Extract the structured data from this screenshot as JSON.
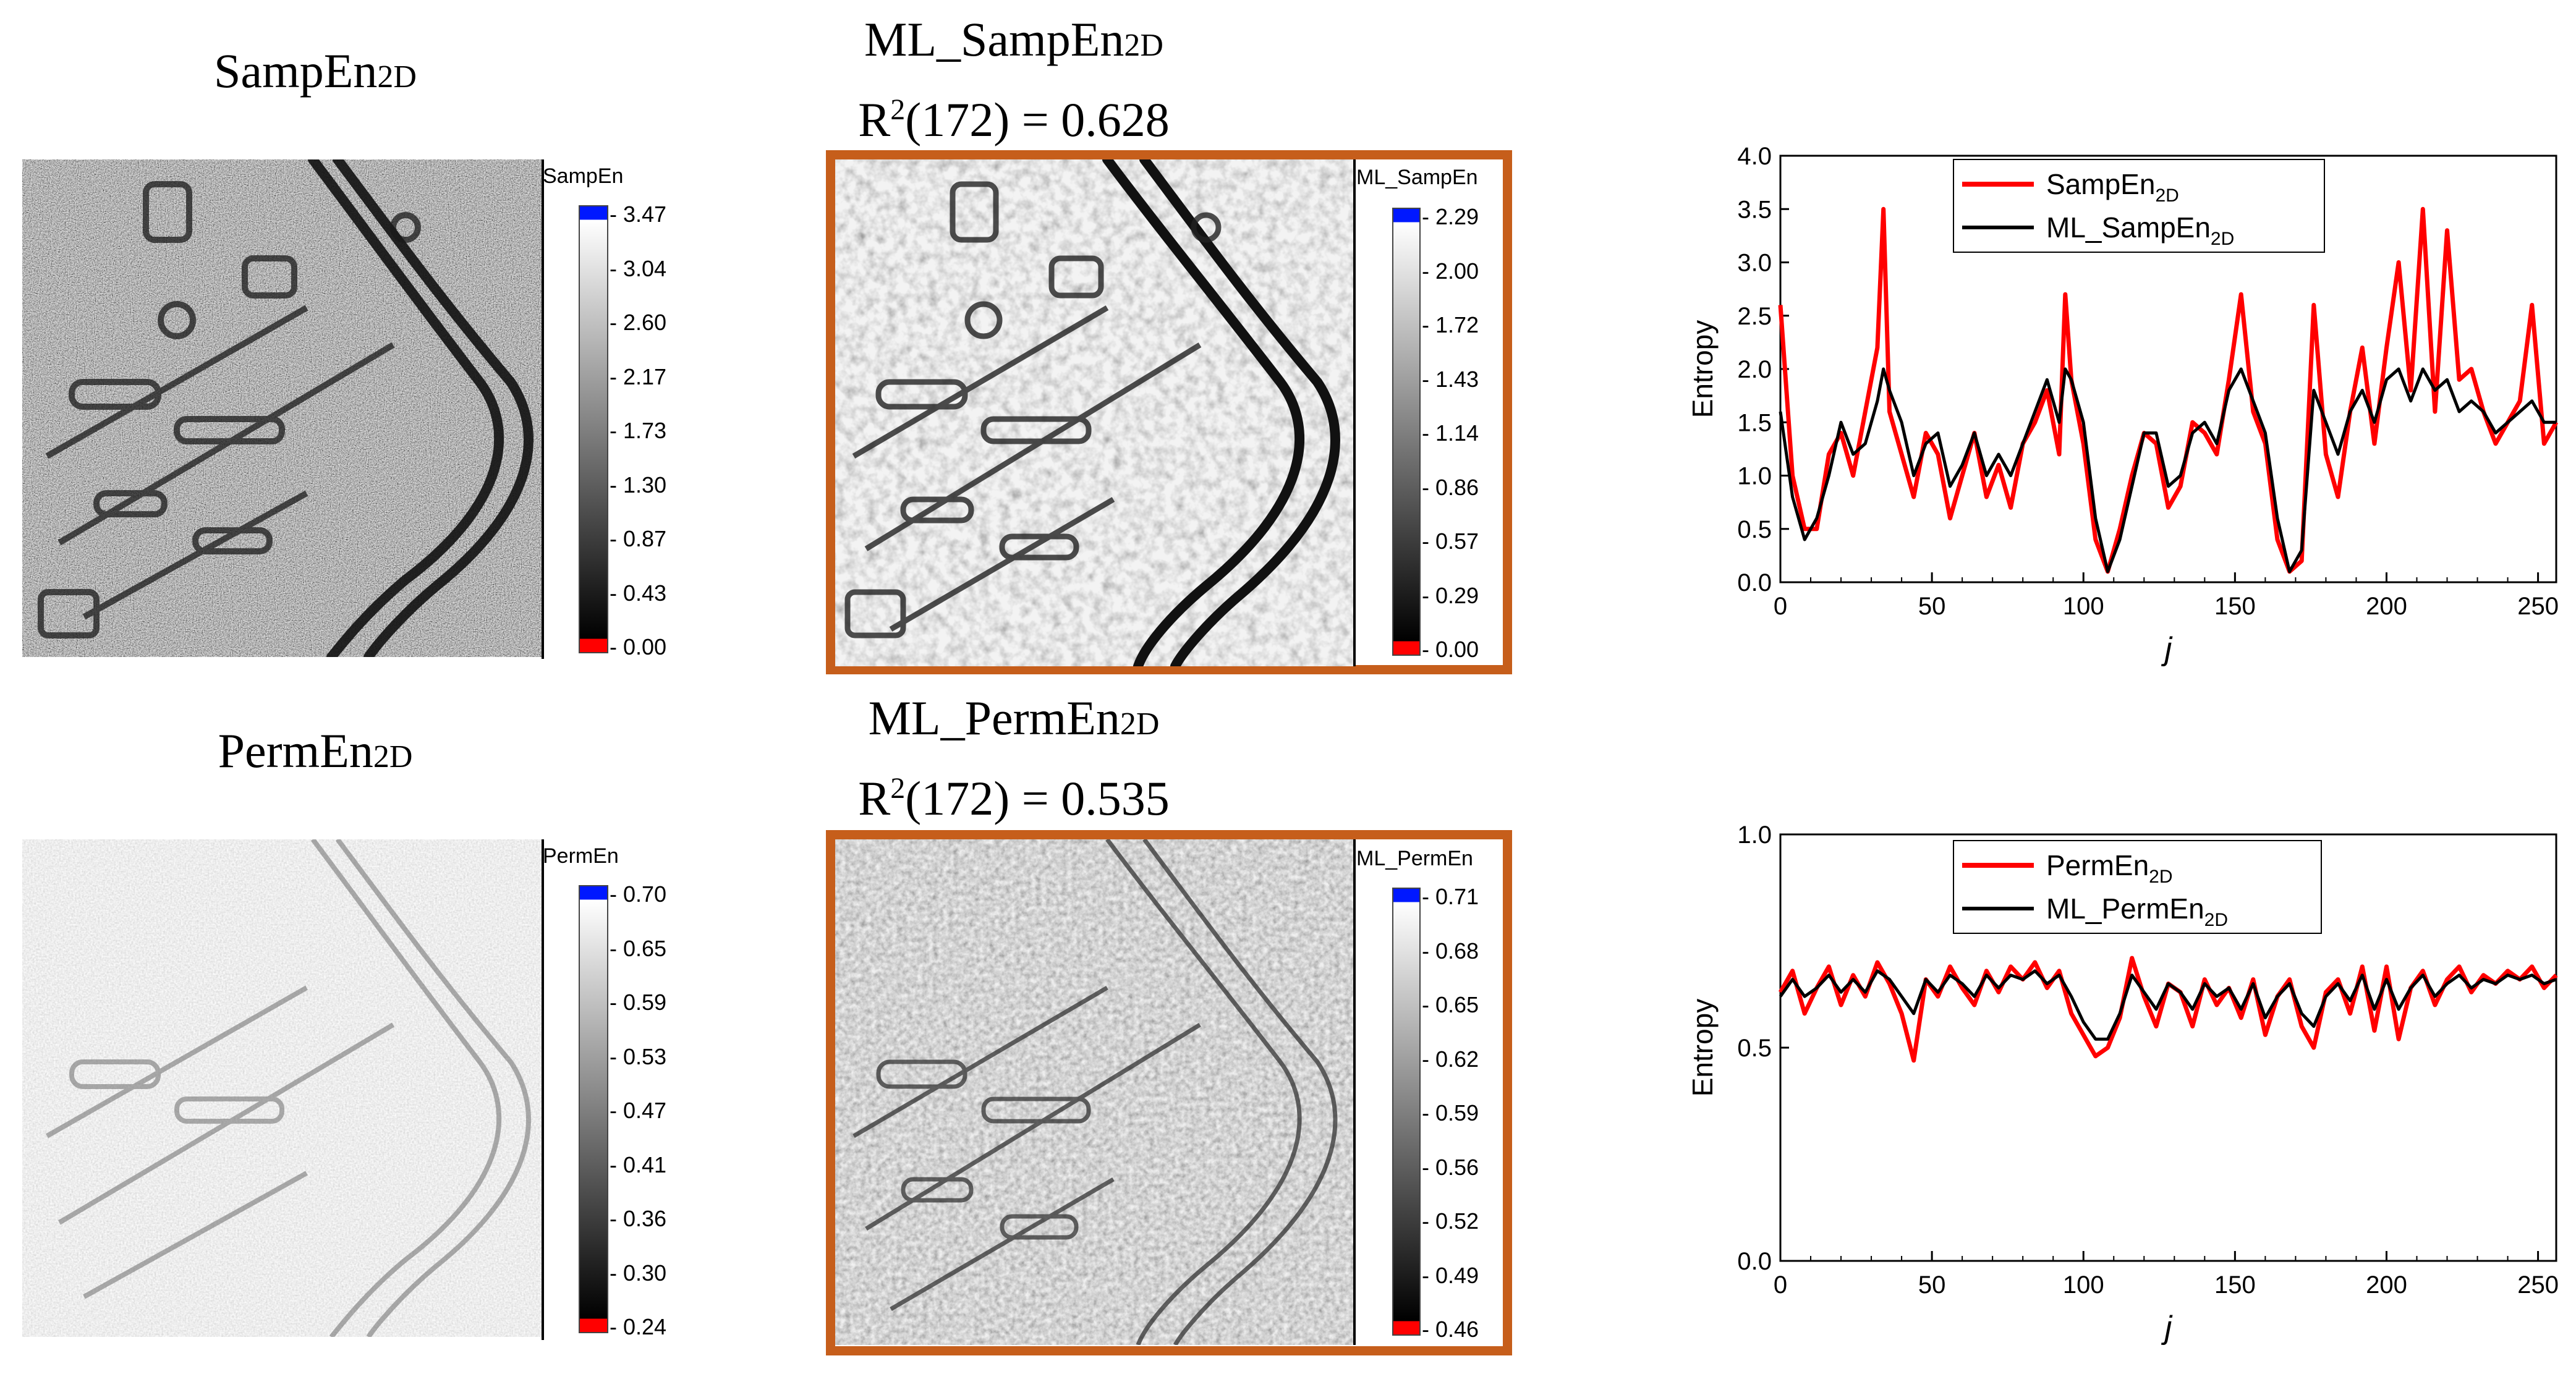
{
  "colors": {
    "frame": "#C65E1B",
    "series_red": "#FF0000",
    "series_black": "#000000"
  },
  "panels": {
    "samp_left": {
      "title_main": "SampEn",
      "title_sub": "2D",
      "colorbar_title": "SampEn",
      "ticks": [
        "3.47",
        "3.04",
        "2.60",
        "2.17",
        "1.73",
        "1.30",
        "0.87",
        "0.43",
        "0.00"
      ]
    },
    "samp_mid": {
      "title_main": "ML_SampEn",
      "title_sub": "2D",
      "r2_prefix": "R",
      "r2_sup": "2",
      "r2_rest": "(172) = 0.628",
      "colorbar_title": "ML_SampEn",
      "ticks": [
        "2.29",
        "2.00",
        "1.72",
        "1.43",
        "1.14",
        "0.86",
        "0.57",
        "0.29",
        "0.00"
      ]
    },
    "perm_left": {
      "title_main": "PermEn",
      "title_sub": "2D",
      "colorbar_title": "PermEn",
      "ticks": [
        "0.70",
        "0.65",
        "0.59",
        "0.53",
        "0.47",
        "0.41",
        "0.36",
        "0.30",
        "0.24"
      ]
    },
    "perm_mid": {
      "title_main": "ML_PermEn",
      "title_sub": "2D",
      "r2_prefix": "R",
      "r2_sup": "2",
      "r2_rest": "(172) = 0.535",
      "colorbar_title": "ML_PermEn",
      "ticks": [
        "0.71",
        "0.68",
        "0.65",
        "0.62",
        "0.59",
        "0.56",
        "0.52",
        "0.49",
        "0.46"
      ]
    }
  },
  "chart_data": [
    {
      "type": "line",
      "ylabel": "Entropy",
      "xlabel": "j",
      "xlim": [
        0,
        256
      ],
      "ylim": [
        0,
        4.0
      ],
      "xticks": [
        "0",
        "50",
        "100",
        "150",
        "200",
        "250"
      ],
      "yticks": [
        "0.0",
        "0.5",
        "1.0",
        "1.5",
        "2.0",
        "2.5",
        "3.0",
        "3.5",
        "4.0"
      ],
      "x": [
        0,
        4,
        8,
        12,
        16,
        20,
        24,
        28,
        32,
        34,
        36,
        40,
        44,
        48,
        52,
        56,
        60,
        64,
        68,
        72,
        76,
        80,
        84,
        88,
        92,
        94,
        96,
        100,
        104,
        108,
        112,
        116,
        120,
        124,
        128,
        132,
        136,
        140,
        144,
        148,
        152,
        156,
        160,
        164,
        168,
        172,
        176,
        180,
        184,
        188,
        192,
        196,
        200,
        204,
        208,
        212,
        216,
        220,
        224,
        228,
        232,
        236,
        240,
        244,
        248,
        252,
        256
      ],
      "series": [
        {
          "name": "SampEn",
          "name_sub": "2D",
          "color": "#FF0000",
          "values": [
            2.6,
            1.0,
            0.5,
            0.5,
            1.2,
            1.4,
            1.0,
            1.6,
            2.2,
            3.5,
            1.6,
            1.2,
            0.8,
            1.4,
            1.2,
            0.6,
            1.0,
            1.4,
            0.8,
            1.1,
            0.7,
            1.3,
            1.5,
            1.8,
            1.2,
            2.7,
            1.9,
            1.3,
            0.4,
            0.1,
            0.5,
            1.0,
            1.4,
            1.3,
            0.7,
            0.9,
            1.5,
            1.4,
            1.2,
            1.9,
            2.7,
            1.6,
            1.3,
            0.4,
            0.1,
            0.2,
            2.6,
            1.2,
            0.8,
            1.6,
            2.2,
            1.3,
            2.2,
            3.0,
            1.8,
            3.5,
            1.6,
            3.3,
            1.9,
            2.0,
            1.6,
            1.3,
            1.5,
            1.7,
            2.6,
            1.3,
            1.5
          ]
        },
        {
          "name": "ML_SampEn",
          "name_sub": "2D",
          "color": "#000000",
          "values": [
            1.6,
            0.8,
            0.4,
            0.6,
            1.0,
            1.5,
            1.2,
            1.3,
            1.7,
            2.0,
            1.8,
            1.5,
            1.0,
            1.3,
            1.4,
            0.9,
            1.1,
            1.4,
            1.0,
            1.2,
            1.0,
            1.3,
            1.6,
            1.9,
            1.5,
            2.0,
            1.9,
            1.5,
            0.6,
            0.1,
            0.4,
            0.9,
            1.4,
            1.4,
            0.9,
            1.0,
            1.4,
            1.5,
            1.3,
            1.8,
            2.0,
            1.7,
            1.4,
            0.6,
            0.1,
            0.3,
            1.8,
            1.5,
            1.2,
            1.6,
            1.8,
            1.5,
            1.9,
            2.0,
            1.7,
            2.0,
            1.8,
            1.9,
            1.6,
            1.7,
            1.6,
            1.4,
            1.5,
            1.6,
            1.7,
            1.5,
            1.5
          ]
        }
      ]
    },
    {
      "type": "line",
      "ylabel": "Entropy",
      "xlabel": "j",
      "xlim": [
        0,
        256
      ],
      "ylim": [
        0,
        1.0
      ],
      "xticks": [
        "0",
        "50",
        "100",
        "150",
        "200",
        "250"
      ],
      "yticks": [
        "0.0",
        "0.5",
        "1.0"
      ],
      "x": [
        0,
        4,
        8,
        12,
        16,
        20,
        24,
        28,
        32,
        36,
        40,
        44,
        48,
        52,
        56,
        60,
        64,
        68,
        72,
        76,
        80,
        84,
        88,
        92,
        96,
        100,
        104,
        108,
        112,
        116,
        120,
        124,
        128,
        132,
        136,
        140,
        144,
        148,
        152,
        156,
        160,
        164,
        168,
        172,
        176,
        180,
        184,
        188,
        192,
        196,
        200,
        204,
        208,
        212,
        216,
        220,
        224,
        228,
        232,
        236,
        240,
        244,
        248,
        252,
        256
      ],
      "series": [
        {
          "name": "PermEn",
          "name_sub": "2D",
          "color": "#FF0000",
          "values": [
            0.63,
            0.68,
            0.58,
            0.64,
            0.69,
            0.6,
            0.67,
            0.62,
            0.7,
            0.65,
            0.58,
            0.47,
            0.66,
            0.62,
            0.69,
            0.64,
            0.6,
            0.68,
            0.63,
            0.69,
            0.66,
            0.7,
            0.64,
            0.68,
            0.58,
            0.53,
            0.48,
            0.5,
            0.57,
            0.71,
            0.62,
            0.55,
            0.65,
            0.63,
            0.55,
            0.66,
            0.6,
            0.64,
            0.57,
            0.66,
            0.53,
            0.62,
            0.66,
            0.55,
            0.5,
            0.63,
            0.66,
            0.58,
            0.69,
            0.54,
            0.69,
            0.52,
            0.64,
            0.68,
            0.6,
            0.66,
            0.69,
            0.63,
            0.67,
            0.65,
            0.68,
            0.66,
            0.69,
            0.64,
            0.67
          ]
        },
        {
          "name": "ML_PermEn",
          "name_sub": "2D",
          "color": "#000000",
          "values": [
            0.62,
            0.66,
            0.62,
            0.64,
            0.67,
            0.63,
            0.66,
            0.63,
            0.68,
            0.66,
            0.62,
            0.58,
            0.66,
            0.63,
            0.67,
            0.65,
            0.62,
            0.67,
            0.64,
            0.67,
            0.66,
            0.68,
            0.65,
            0.67,
            0.62,
            0.56,
            0.52,
            0.52,
            0.58,
            0.67,
            0.63,
            0.59,
            0.65,
            0.63,
            0.59,
            0.65,
            0.62,
            0.64,
            0.59,
            0.65,
            0.57,
            0.62,
            0.65,
            0.58,
            0.55,
            0.62,
            0.65,
            0.61,
            0.67,
            0.59,
            0.66,
            0.59,
            0.64,
            0.67,
            0.62,
            0.65,
            0.67,
            0.64,
            0.66,
            0.65,
            0.67,
            0.66,
            0.67,
            0.65,
            0.66
          ]
        }
      ]
    }
  ]
}
